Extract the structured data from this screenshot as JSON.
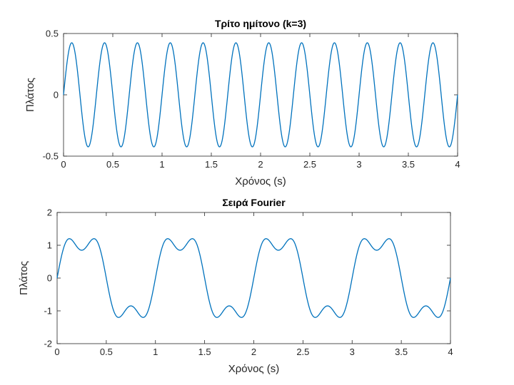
{
  "chart_data": [
    {
      "type": "line",
      "title": "Τρίτο ημίτονο (k=3)",
      "xlabel": "Χρόνος (s)",
      "ylabel": "Πλάτος",
      "xlim": [
        0,
        4
      ],
      "ylim": [
        -0.5,
        0.5
      ],
      "xticks": [
        0,
        0.5,
        1,
        1.5,
        2,
        2.5,
        3,
        3.5,
        4
      ],
      "xtick_labels": [
        "0",
        "0.5",
        "1",
        "1.5",
        "2",
        "2.5",
        "3",
        "3.5",
        "4"
      ],
      "yticks": [
        -0.5,
        0,
        0.5
      ],
      "ytick_labels": [
        "-0.5",
        "0",
        "0.5"
      ],
      "grid": false,
      "color": "#0072BD",
      "series": [
        {
          "function": "(4/(3*pi))*sin(2*pi*3*t)",
          "amplitude": 0.4244,
          "frequency_hz": 3,
          "x_range": [
            0,
            4
          ]
        }
      ]
    },
    {
      "type": "line",
      "title": "Σειρά Fourier",
      "xlabel": "Χρόνος (s)",
      "ylabel": "Πλάτος",
      "xlim": [
        0,
        4
      ],
      "ylim": [
        -2,
        2
      ],
      "xticks": [
        0,
        0.5,
        1,
        1.5,
        2,
        2.5,
        3,
        3.5,
        4
      ],
      "xtick_labels": [
        "0",
        "0.5",
        "1",
        "1.5",
        "2",
        "2.5",
        "3",
        "3.5",
        "4"
      ],
      "yticks": [
        -2,
        -1,
        0,
        1,
        2
      ],
      "ytick_labels": [
        "-2",
        "-1",
        "0",
        "1",
        "2"
      ],
      "grid": false,
      "color": "#0072BD",
      "series": [
        {
          "function": "(4/pi)*(sin(2*pi*t)+sin(2*pi*3*t)/3)",
          "harmonics": [
            1,
            3
          ],
          "frequency_hz": 1,
          "x_range": [
            0,
            4
          ]
        }
      ]
    }
  ]
}
